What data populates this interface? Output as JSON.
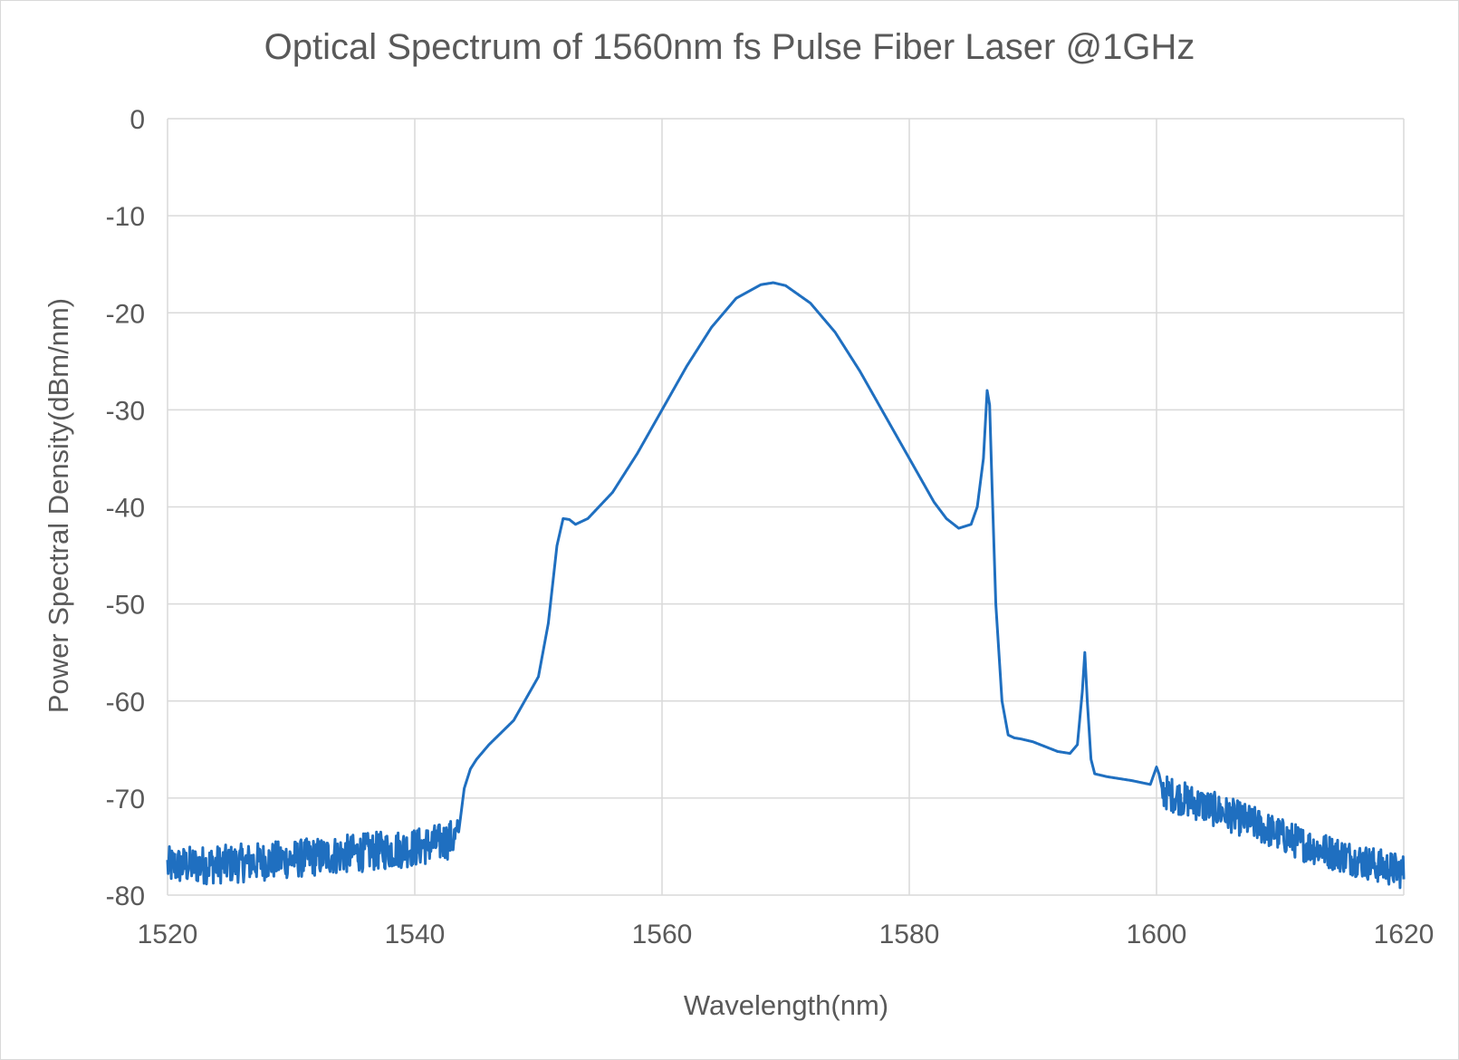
{
  "chart_data": {
    "type": "line",
    "title": "Optical Spectrum of 1560nm fs Pulse Fiber Laser @1GHz",
    "xlabel": "Wavelength(nm)",
    "ylabel": "Power Spectral Density(dBm/nm)",
    "xlim": [
      1520,
      1620
    ],
    "ylim": [
      -80,
      0
    ],
    "x_ticks": [
      1520,
      1540,
      1560,
      1580,
      1600,
      1620
    ],
    "y_ticks": [
      0,
      -10,
      -20,
      -30,
      -40,
      -50,
      -60,
      -70,
      -80
    ],
    "grid": true,
    "legend": "none",
    "series": [
      {
        "name": "Optical Spectrum",
        "color": "#1F6FC0",
        "x": [
          1520,
          1525,
          1530,
          1535,
          1540,
          1542,
          1543.5,
          1544,
          1544.5,
          1545,
          1546,
          1548,
          1550,
          1550.8,
          1551.5,
          1552,
          1552.5,
          1553,
          1554,
          1556,
          1558,
          1560,
          1562,
          1564,
          1566,
          1568,
          1569,
          1570,
          1572,
          1574,
          1576,
          1578,
          1580,
          1582,
          1583,
          1584,
          1585,
          1585.5,
          1586,
          1586.3,
          1586.5,
          1586.7,
          1587,
          1587.5,
          1588,
          1588.5,
          1589,
          1590,
          1591,
          1592,
          1593,
          1593.6,
          1594,
          1594.2,
          1594.4,
          1594.7,
          1595,
          1596,
          1598,
          1599.5,
          1600,
          1600.2,
          1600.5,
          1602,
          1605,
          1608,
          1610,
          1612,
          1615,
          1618,
          1620
        ],
        "y": [
          -77,
          -76.8,
          -76.3,
          -75.7,
          -75.1,
          -74.6,
          -74,
          -69,
          -67,
          -66,
          -64.5,
          -62,
          -57.5,
          -52,
          -44,
          -41.2,
          -41.3,
          -41.8,
          -41.2,
          -38.5,
          -34.5,
          -30,
          -25.5,
          -21.5,
          -18.5,
          -17.1,
          -16.9,
          -17.2,
          -19,
          -22,
          -26,
          -30.5,
          -35,
          -39.5,
          -41.2,
          -42.2,
          -41.8,
          -40,
          -35,
          -28,
          -29.5,
          -38,
          -50,
          -60,
          -63.5,
          -63.8,
          -63.9,
          -64.2,
          -64.7,
          -65.2,
          -65.4,
          -64.5,
          -59,
          -55,
          -60,
          -66,
          -67.5,
          -67.8,
          -68.2,
          -68.6,
          -66.8,
          -67.5,
          -69.3,
          -70,
          -71.3,
          -72.7,
          -73.8,
          -74.8,
          -75.9,
          -77,
          -77.6
        ],
        "noise_regions": [
          {
            "x_start": 1520,
            "x_end": 1543.5,
            "amplitude_db": 2
          },
          {
            "x_start": 1600.5,
            "x_end": 1620,
            "amplitude_db": 1.8
          }
        ]
      }
    ]
  }
}
